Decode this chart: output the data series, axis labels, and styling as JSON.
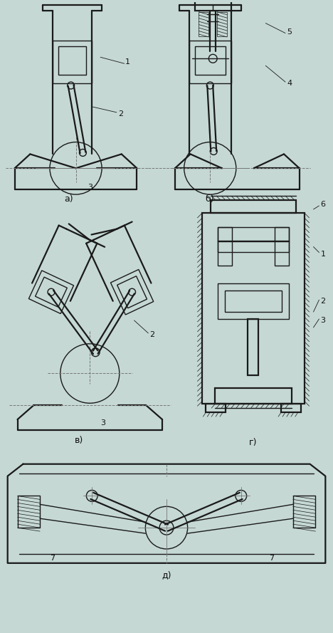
{
  "bg_color": "#c5d8d4",
  "line_color": "#1a1a1a",
  "lw": 1.0,
  "lw2": 1.6,
  "fig_width": 4.68,
  "fig_height": 8.89,
  "label_a": "а)",
  "label_b": "б)",
  "label_v": "в)",
  "label_g": "г)",
  "label_d": "д)"
}
